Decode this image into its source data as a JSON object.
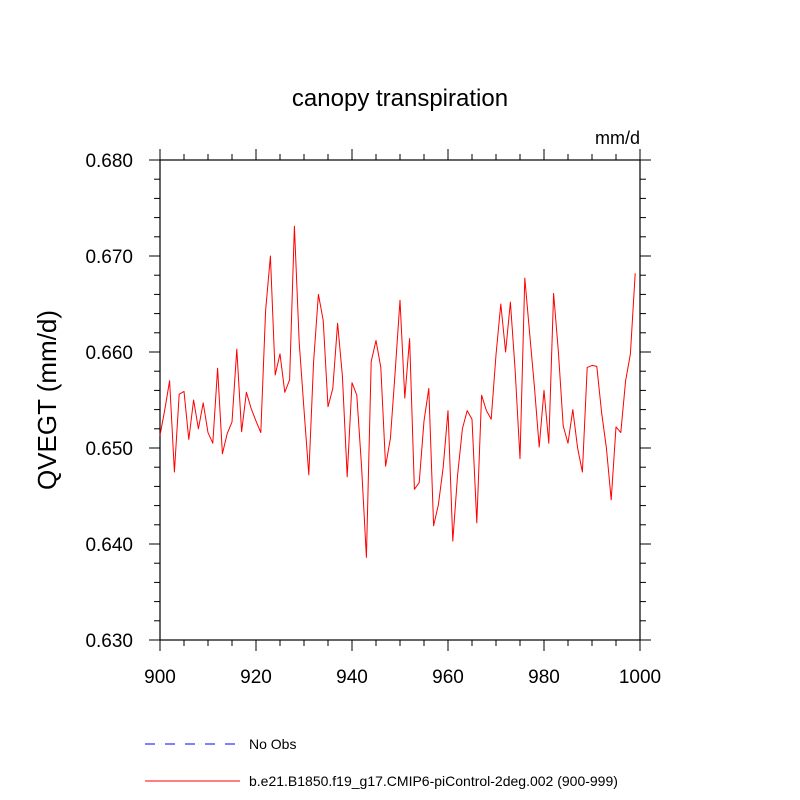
{
  "chart_data": {
    "type": "line",
    "title": "canopy transpiration",
    "units": "mm/d",
    "ylabel": "QVEGT  (mm/d)",
    "xlabel": "",
    "xlim": [
      900,
      1000
    ],
    "ylim": [
      0.63,
      0.68
    ],
    "x_ticks": [
      900,
      920,
      940,
      960,
      980,
      1000
    ],
    "x_tick_labels": [
      "900",
      "920",
      "940",
      "960",
      "980",
      "1000"
    ],
    "y_ticks": [
      0.63,
      0.64,
      0.65,
      0.66,
      0.67,
      0.68
    ],
    "y_tick_labels": [
      "0.630",
      "0.640",
      "0.650",
      "0.660",
      "0.670",
      "0.680"
    ],
    "grid": false,
    "legend_placement": "bottom",
    "legend": [
      {
        "label": "No Obs",
        "color": "#0000ff",
        "dash": "dashed"
      },
      {
        "label": "b.e21.B1850.f19_g17.CMIP6-piControl-2deg.002 (900-999)",
        "color": "#ff0000",
        "dash": "solid"
      }
    ],
    "series": [
      {
        "name": "b.e21.B1850.f19_g17.CMIP6-piControl-2deg.002 (900-999)",
        "color": "#ff0000",
        "x": [
          900,
          901,
          902,
          903,
          904,
          905,
          906,
          907,
          908,
          909,
          910,
          911,
          912,
          913,
          914,
          915,
          916,
          917,
          918,
          919,
          920,
          921,
          922,
          923,
          924,
          925,
          926,
          927,
          928,
          929,
          930,
          931,
          932,
          933,
          934,
          935,
          936,
          937,
          938,
          939,
          940,
          941,
          942,
          943,
          944,
          945,
          946,
          947,
          948,
          949,
          950,
          951,
          952,
          953,
          954,
          955,
          956,
          957,
          958,
          959,
          960,
          961,
          962,
          963,
          964,
          965,
          966,
          967,
          968,
          969,
          970,
          971,
          972,
          973,
          974,
          975,
          976,
          977,
          978,
          979,
          980,
          981,
          982,
          983,
          984,
          985,
          986,
          987,
          988,
          989,
          990,
          991,
          992,
          993,
          994,
          995,
          996,
          997,
          998,
          999
        ],
        "y": [
          0.6513,
          0.654,
          0.657,
          0.6475,
          0.6556,
          0.6559,
          0.6509,
          0.655,
          0.652,
          0.6547,
          0.6516,
          0.6505,
          0.6583,
          0.6494,
          0.6515,
          0.6527,
          0.6603,
          0.6517,
          0.6558,
          0.6541,
          0.6528,
          0.6516,
          0.6643,
          0.67,
          0.6576,
          0.6598,
          0.6558,
          0.6571,
          0.6731,
          0.661,
          0.654,
          0.6472,
          0.659,
          0.666,
          0.6633,
          0.6543,
          0.6562,
          0.663,
          0.6575,
          0.647,
          0.6568,
          0.6555,
          0.648,
          0.6386,
          0.659,
          0.6612,
          0.6584,
          0.6481,
          0.651,
          0.658,
          0.6654,
          0.6552,
          0.6614,
          0.6457,
          0.6464,
          0.6528,
          0.6562,
          0.6419,
          0.6441,
          0.648,
          0.6539,
          0.6403,
          0.6472,
          0.652,
          0.6539,
          0.653,
          0.6422,
          0.6555,
          0.6539,
          0.653,
          0.6597,
          0.665,
          0.66,
          0.6652,
          0.658,
          0.6489,
          0.6677,
          0.662,
          0.6564,
          0.6501,
          0.656,
          0.6505,
          0.6661,
          0.66,
          0.6523,
          0.6505,
          0.654,
          0.65,
          0.6475,
          0.6584,
          0.6586,
          0.6585,
          0.6537,
          0.65,
          0.6446,
          0.6522,
          0.6516,
          0.657,
          0.6598,
          0.6682
        ]
      }
    ]
  }
}
